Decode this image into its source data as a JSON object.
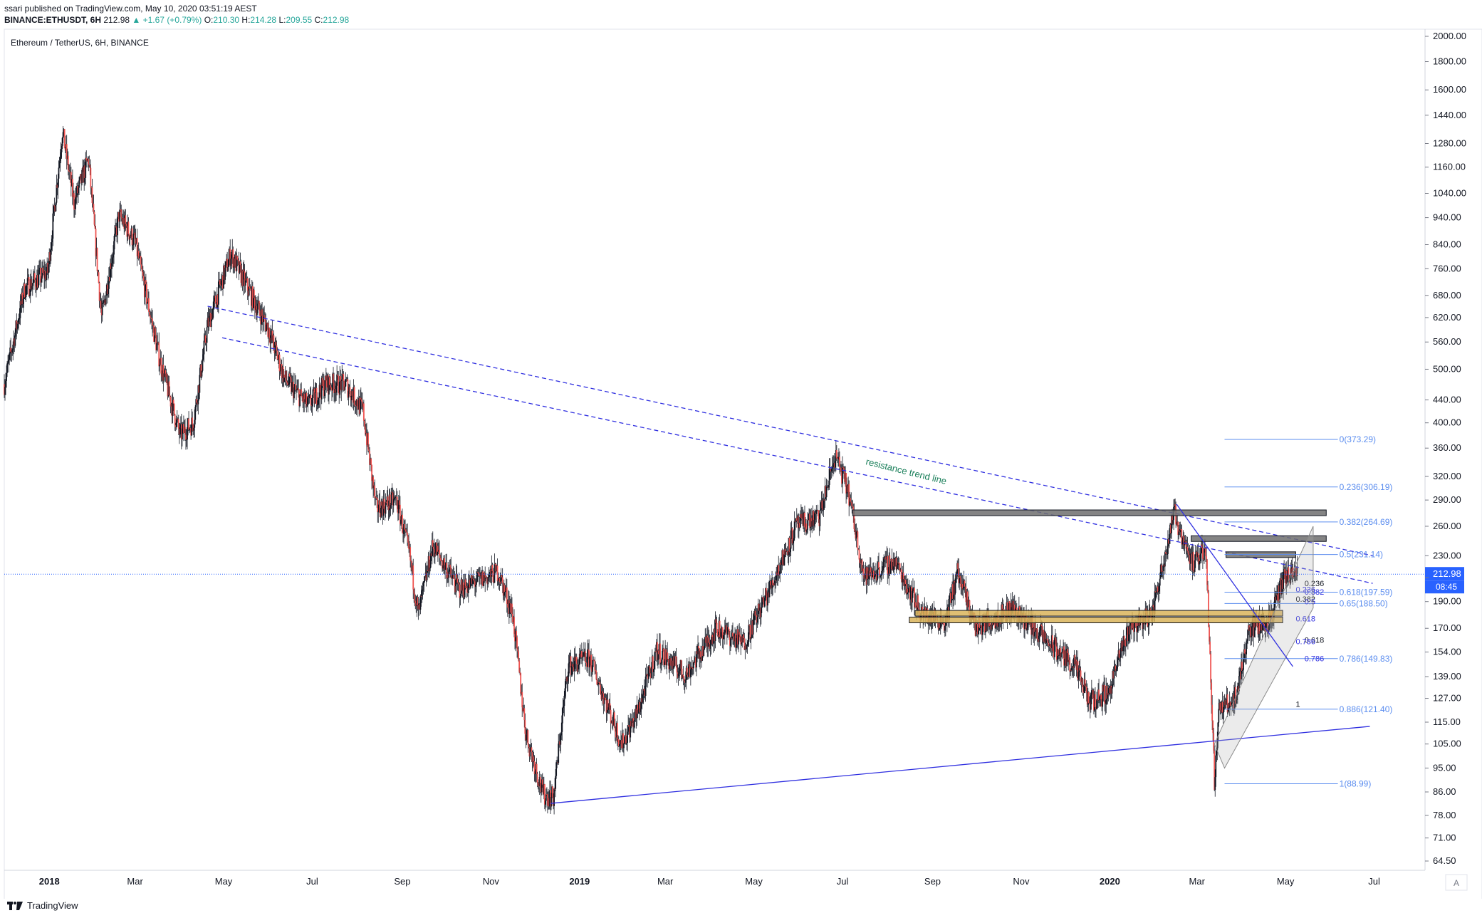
{
  "header": {
    "published": "ssari published on TradingView.com, May 10, 2020 03:51:19 AEST",
    "symbol": "BINANCE:ETHUSDT, 6H",
    "last": "212.98",
    "change": "▲ +1.67 (+0.79%)",
    "o_label": "O:",
    "o": "210.30",
    "h_label": "H:",
    "h": "214.28",
    "l_label": "L:",
    "l": "209.55",
    "c_label": "C:",
    "c": "212.98"
  },
  "footer": {
    "brand": "TradingView"
  },
  "colors": {
    "up": "#26a69a",
    "down": "#ef5350",
    "bar": "#131722",
    "trend": "#2f2fe0",
    "fib": "#5b8def",
    "zone": "#4a4a4a",
    "gold": "#c8a24a",
    "price_tag": "#2962ff"
  },
  "chart_data": {
    "type": "candlestick",
    "title": "Ethereum / TetherUS, 6H, BINANCE",
    "yscale": "log",
    "ylim": [
      60,
      2050
    ],
    "y_ticks": [
      2000,
      1800,
      1600,
      1440,
      1280,
      1160,
      1040,
      940,
      840,
      760,
      680,
      620,
      560,
      500,
      440,
      400,
      360,
      320,
      290,
      260,
      230,
      210,
      190,
      170,
      154,
      139,
      127,
      115,
      105,
      95,
      86,
      78,
      71,
      64.5
    ],
    "y_tick_labels": [
      "2000.00",
      "1800.00",
      "1600.00",
      "1440.00",
      "1280.00",
      "1160.00",
      "1040.00",
      "940.00",
      "840.00",
      "760.00",
      "680.00",
      "620.00",
      "560.00",
      "500.00",
      "440.00",
      "400.00",
      "360.00",
      "320.00",
      "290.00",
      "260.00",
      "230.00",
      "",
      "190.00",
      "170.00",
      "154.00",
      "139.00",
      "127.00",
      "115.00",
      "105.00",
      "95.00",
      "86.00",
      "78.00",
      "71.00",
      "64.50"
    ],
    "x_tick_labels": [
      {
        "label": "2018",
        "bold": true
      },
      {
        "label": "Mar"
      },
      {
        "label": "May"
      },
      {
        "label": "Jul"
      },
      {
        "label": "Sep"
      },
      {
        "label": "Nov"
      },
      {
        "label": "2019",
        "bold": true
      },
      {
        "label": "Mar"
      },
      {
        "label": "May"
      },
      {
        "label": "Jul"
      },
      {
        "label": "Sep"
      },
      {
        "label": "Nov"
      },
      {
        "label": "2020",
        "bold": true
      },
      {
        "label": "Mar"
      },
      {
        "label": "May"
      },
      {
        "label": "Jul"
      }
    ],
    "x_tick_dates": [
      "2018-01-01",
      "2018-03-01",
      "2018-05-01",
      "2018-07-01",
      "2018-09-01",
      "2018-11-01",
      "2019-01-01",
      "2019-03-01",
      "2019-05-01",
      "2019-07-01",
      "2019-09-01",
      "2019-11-01",
      "2020-01-01",
      "2020-03-01",
      "2020-05-01",
      "2020-07-01"
    ],
    "xlim": [
      "2017-12-01",
      "2020-08-05"
    ],
    "price_path": [
      [
        "2017-12-01",
        470
      ],
      [
        "2017-12-15",
        700
      ],
      [
        "2017-12-31",
        750
      ],
      [
        "2018-01-10",
        1350
      ],
      [
        "2018-01-18",
        1000
      ],
      [
        "2018-01-28",
        1200
      ],
      [
        "2018-02-06",
        620
      ],
      [
        "2018-02-18",
        950
      ],
      [
        "2018-03-01",
        850
      ],
      [
        "2018-03-18",
        520
      ],
      [
        "2018-04-01",
        380
      ],
      [
        "2018-04-10",
        400
      ],
      [
        "2018-04-20",
        600
      ],
      [
        "2018-05-06",
        810
      ],
      [
        "2018-05-20",
        680
      ],
      [
        "2018-06-01",
        590
      ],
      [
        "2018-06-12",
        480
      ],
      [
        "2018-06-28",
        430
      ],
      [
        "2018-07-10",
        470
      ],
      [
        "2018-07-24",
        470
      ],
      [
        "2018-08-05",
        420
      ],
      [
        "2018-08-14",
        280
      ],
      [
        "2018-08-28",
        290
      ],
      [
        "2018-09-06",
        230
      ],
      [
        "2018-09-12",
        180
      ],
      [
        "2018-09-22",
        240
      ],
      [
        "2018-10-10",
        200
      ],
      [
        "2018-11-06",
        215
      ],
      [
        "2018-11-16",
        180
      ],
      [
        "2018-11-25",
        110
      ],
      [
        "2018-12-07",
        85
      ],
      [
        "2018-12-14",
        84
      ],
      [
        "2018-12-24",
        145
      ],
      [
        "2019-01-08",
        150
      ],
      [
        "2019-01-30",
        105
      ],
      [
        "2019-02-10",
        120
      ],
      [
        "2019-02-23",
        155
      ],
      [
        "2019-03-15",
        140
      ],
      [
        "2019-04-05",
        170
      ],
      [
        "2019-04-24",
        160
      ],
      [
        "2019-05-12",
        200
      ],
      [
        "2019-05-30",
        260
      ],
      [
        "2019-06-15",
        270
      ],
      [
        "2019-06-26",
        350
      ],
      [
        "2019-07-05",
        300
      ],
      [
        "2019-07-16",
        210
      ],
      [
        "2019-08-06",
        225
      ],
      [
        "2019-08-25",
        180
      ],
      [
        "2019-09-10",
        175
      ],
      [
        "2019-09-18",
        215
      ],
      [
        "2019-10-01",
        170
      ],
      [
        "2019-10-26",
        185
      ],
      [
        "2019-11-20",
        160
      ],
      [
        "2019-12-08",
        145
      ],
      [
        "2019-12-18",
        125
      ],
      [
        "2019-12-31",
        130
      ],
      [
        "2020-01-14",
        170
      ],
      [
        "2020-01-30",
        180
      ],
      [
        "2020-02-14",
        275
      ],
      [
        "2020-02-28",
        220
      ],
      [
        "2020-03-07",
        240
      ],
      [
        "2020-03-12",
        110
      ],
      [
        "2020-03-13",
        90
      ],
      [
        "2020-03-16",
        120
      ],
      [
        "2020-03-28",
        128
      ],
      [
        "2020-04-06",
        170
      ],
      [
        "2020-04-20",
        175
      ],
      [
        "2020-04-30",
        210
      ],
      [
        "2020-05-09",
        212.98
      ]
    ],
    "volatility_notes": "candles synthesized around price_path",
    "trendlines": [
      {
        "style": "dashed",
        "from": [
          "2018-04-20",
          650
        ],
        "to": [
          "2020-06-30",
          230
        ]
      },
      {
        "style": "dashed",
        "from": [
          "2018-04-30",
          570
        ],
        "to": [
          "2020-06-30",
          205
        ]
      },
      {
        "style": "solid",
        "from": [
          "2018-12-12",
          82
        ],
        "to": [
          "2020-06-28",
          113
        ]
      }
    ],
    "annotation": "resistance trend line",
    "horizontal_zones": [
      {
        "from": "2019-07-08",
        "to": "2020-05-29",
        "price": 275,
        "color": "gray"
      },
      {
        "from": "2020-02-26",
        "to": "2020-05-29",
        "price": 247,
        "color": "gray"
      },
      {
        "from": "2020-03-21",
        "to": "2020-05-08",
        "price": 231,
        "color": "gray"
      },
      {
        "from": "2019-08-20",
        "to": "2020-04-29",
        "price": 181,
        "color": "gold"
      },
      {
        "from": "2019-08-16",
        "to": "2020-04-29",
        "price": 176,
        "color": "gold"
      }
    ],
    "fib_levels": [
      {
        "label": "0(373.29)",
        "price": 373.29
      },
      {
        "label": "0.236(306.19)",
        "price": 306.19
      },
      {
        "label": "0.382(264.69)",
        "price": 264.69
      },
      {
        "label": "0.5(231.14)",
        "price": 231.14
      },
      {
        "label": "0.618(197.59)",
        "price": 197.59
      },
      {
        "label": "0.65(188.50)",
        "price": 188.5
      },
      {
        "label": "0.786(149.83)",
        "price": 149.83
      },
      {
        "label": "0.886(121.40)",
        "price": 121.4
      },
      {
        "label": "1(88.99)",
        "price": 88.99
      }
    ],
    "small_fib_labels": [
      "0.236",
      "0.236",
      "0.382",
      "0.382",
      "0.5",
      "0.618",
      "0.618",
      "0.786",
      "0.786",
      "1"
    ],
    "last_price_label": "212.98",
    "countdown_label": "08:45",
    "last_price": 212.98,
    "scale_button": "A"
  }
}
